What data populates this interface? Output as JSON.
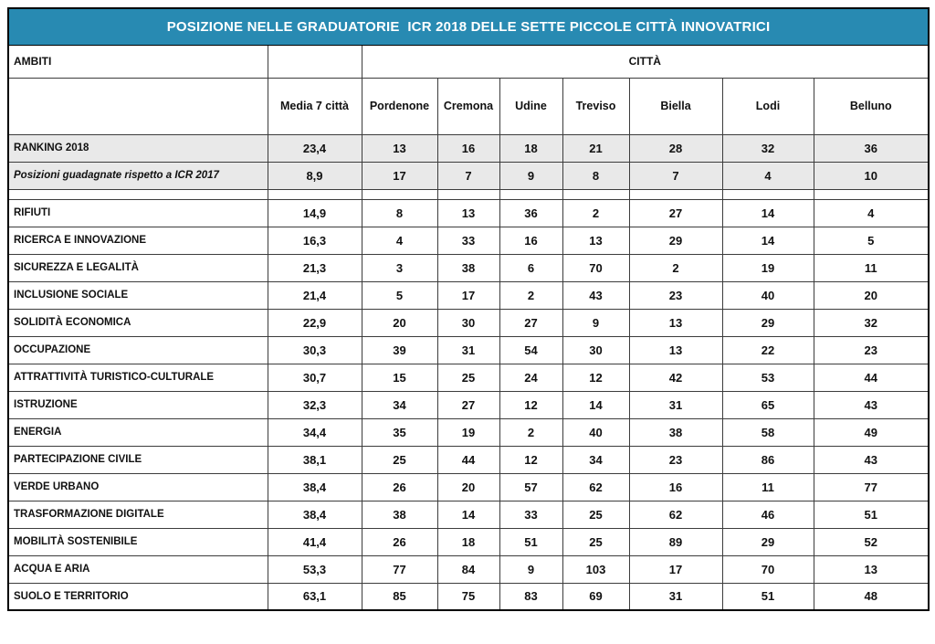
{
  "title": "POSIZIONE NELLE GRADUATORIE  ICR 2018 DELLE SETTE PICCOLE CITTÀ INNOVATRICI",
  "colors": {
    "title_bg": "#288ab2",
    "title_text": "#ffffff",
    "summary_row_bg": "#e9e9e9",
    "highlight_cell_bg": "#dce3f3",
    "grid_border": "#3c3c3c"
  },
  "header": {
    "ambiti_label": "AMBITI",
    "citta_label": "CITTÀ",
    "media_label": "Media 7 città",
    "cities": [
      "Pordenone",
      "Cremona",
      "Udine",
      "Treviso",
      "Biella",
      "Lodi",
      "Belluno"
    ]
  },
  "summary_rows": [
    {
      "label": "RANKING 2018",
      "italic": false,
      "media": "23,4",
      "values": [
        "13",
        "16",
        "18",
        "21",
        "28",
        "32",
        "36"
      ],
      "highlight": []
    },
    {
      "label": "Posizioni guadagnate rispetto a ICR 2017",
      "italic": true,
      "media": "8,9",
      "values": [
        "17",
        "7",
        "9",
        "8",
        "7",
        "4",
        "10"
      ],
      "highlight": []
    }
  ],
  "rows": [
    {
      "label": "RIFIUTI",
      "media": "14,9",
      "values": [
        "8",
        "13",
        "36",
        "2",
        "27",
        "14",
        "4"
      ],
      "highlight": [
        3
      ]
    },
    {
      "label": "RICERCA E INNOVAZIONE",
      "media": "16,3",
      "values": [
        "4",
        "33",
        "16",
        "13",
        "29",
        "14",
        "5"
      ],
      "highlight": []
    },
    {
      "label": "SICUREZZA E LEGALITÀ",
      "media": "21,3",
      "values": [
        "3",
        "38",
        "6",
        "70",
        "2",
        "19",
        "11"
      ],
      "highlight": [
        0,
        4
      ]
    },
    {
      "label": "INCLUSIONE SOCIALE",
      "media": "21,4",
      "values": [
        "5",
        "17",
        "2",
        "43",
        "23",
        "40",
        "20"
      ],
      "highlight": [
        2
      ]
    },
    {
      "label": "SOLIDITÀ ECONOMICA",
      "media": "22,9",
      "values": [
        "20",
        "30",
        "27",
        "9",
        "13",
        "29",
        "32"
      ],
      "highlight": []
    },
    {
      "label": "OCCUPAZIONE",
      "media": "30,3",
      "values": [
        "39",
        "31",
        "54",
        "30",
        "13",
        "22",
        "23"
      ],
      "highlight": []
    },
    {
      "label": "ATTRATTIVITÀ TURISTICO-CULTURALE",
      "media": "30,7",
      "values": [
        "15",
        "25",
        "24",
        "12",
        "42",
        "53",
        "44"
      ],
      "highlight": []
    },
    {
      "label": "ISTRUZIONE",
      "media": "32,3",
      "values": [
        "34",
        "27",
        "12",
        "14",
        "31",
        "65",
        "43"
      ],
      "highlight": []
    },
    {
      "label": "ENERGIA",
      "media": "34,4",
      "values": [
        "35",
        "19",
        "2",
        "40",
        "38",
        "58",
        "49"
      ],
      "highlight": [
        2
      ]
    },
    {
      "label": "PARTECIPAZIONE CIVILE",
      "media": "38,1",
      "values": [
        "25",
        "44",
        "12",
        "34",
        "23",
        "86",
        "43"
      ],
      "highlight": []
    },
    {
      "label": "VERDE URBANO",
      "media": "38,4",
      "values": [
        "26",
        "20",
        "57",
        "62",
        "16",
        "11",
        "77"
      ],
      "highlight": []
    },
    {
      "label": "TRASFORMAZIONE DIGITALE",
      "media": "38,4",
      "values": [
        "38",
        "14",
        "33",
        "25",
        "62",
        "46",
        "51"
      ],
      "highlight": []
    },
    {
      "label": "MOBILITÀ SOSTENIBILE",
      "media": "41,4",
      "values": [
        "26",
        "18",
        "51",
        "25",
        "89",
        "29",
        "52"
      ],
      "highlight": []
    },
    {
      "label": "ACQUA E ARIA",
      "media": "53,3",
      "values": [
        "77",
        "84",
        "9",
        "103",
        "17",
        "70",
        "13"
      ],
      "highlight": []
    },
    {
      "label": "SUOLO E TERRITORIO",
      "media": "63,1",
      "values": [
        "85",
        "75",
        "83",
        "69",
        "31",
        "51",
        "48"
      ],
      "highlight": []
    }
  ]
}
